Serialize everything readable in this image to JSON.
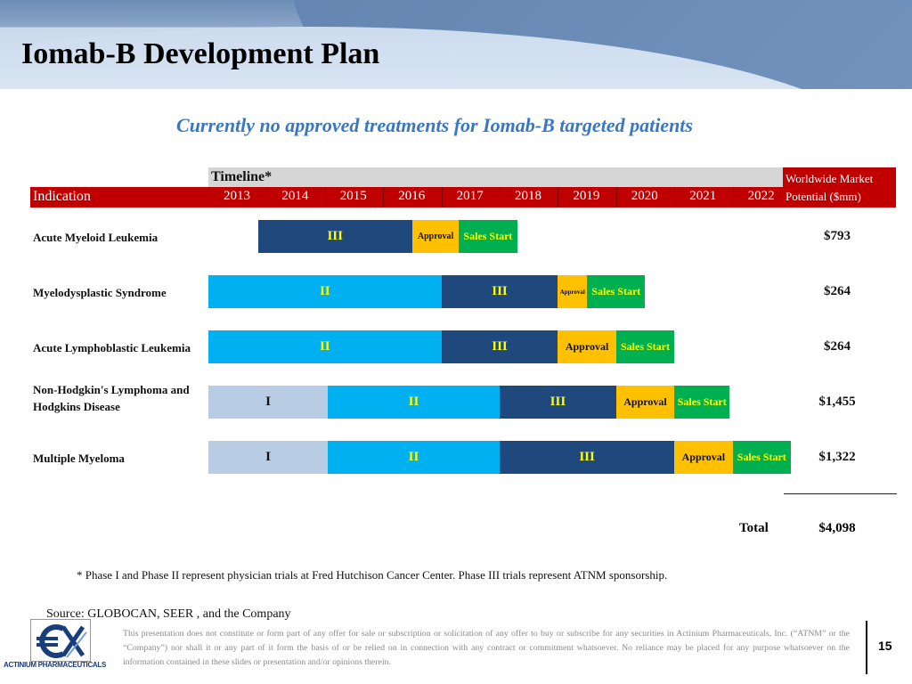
{
  "slide": {
    "title": "Iomab-B Development Plan",
    "subtitle": "Currently no approved treatments for Iomab-B targeted patients",
    "timeline_label": "Timeline*",
    "indication_header": "Indication",
    "market_header_line1": "Worldwide Market",
    "market_header_line2": "Potential ($mm)",
    "total_label": "Total",
    "total_value": "$4,098",
    "footnote": "* Phase I and Phase II represent physician trials at Fred Hutchison Cancer Center. Phase III trials represent ATNM sponsorship.",
    "source": "Source: GLOBOCAN, SEER , and the Company",
    "logo_text": "ACTINIUM PHARMACEUTICALS",
    "disclaimer": "This presentation does not constitute or form part of any offer for sale or subscription or solicitation of any offer to buy or subscribe for any securities in Actinium Pharmaceuticals, Inc. (“ATNM” or the “Company”) nor shall it or any part of it form the basis of or be relied on in connection with any contract or commitment whatsoever. No reliance may be placed for any purpose whatsoever on the information contained in these slides or presentation and/or opinions therein.",
    "page_number": "15"
  },
  "colors": {
    "header_red": "#c00000",
    "phase_I": "#b8cce4",
    "phase_II": "#00b0f0",
    "phase_III": "#1f497d",
    "approval": "#ffc000",
    "sales_start": "#00b050",
    "phase_text": "#ffff00",
    "sales_text": "#ffff00"
  },
  "chart_data": {
    "type": "gantt",
    "title": "Iomab-B Development Plan",
    "years": [
      "2013",
      "2014",
      "2015",
      "2016",
      "2017",
      "2018",
      "2019",
      "2020",
      "2021",
      "2022"
    ],
    "rows": [
      {
        "indication": "Acute Myeloid Leukemia",
        "market": "$793",
        "segments": [
          {
            "label": "III",
            "kind": "phase_III",
            "start": 2013.85,
            "end": 2016.5
          },
          {
            "label": "Approval",
            "kind": "approval",
            "start": 2016.5,
            "end": 2017.3
          },
          {
            "label": "Sales Start",
            "kind": "sales_start",
            "start": 2017.3,
            "end": 2018.3
          }
        ]
      },
      {
        "indication": "Myelodysplastic Syndrome",
        "market": "$264",
        "segments": [
          {
            "label": "II",
            "kind": "phase_II",
            "start": 2013,
            "end": 2017
          },
          {
            "label": "III",
            "kind": "phase_III",
            "start": 2017,
            "end": 2019
          },
          {
            "label": "Approval",
            "kind": "approval",
            "start": 2019,
            "end": 2019.5
          },
          {
            "label": "Sales Start",
            "kind": "sales_start",
            "start": 2019.5,
            "end": 2020.5
          }
        ]
      },
      {
        "indication": "Acute Lymphoblastic Leukemia",
        "market": "$264",
        "segments": [
          {
            "label": "II",
            "kind": "phase_II",
            "start": 2013,
            "end": 2017
          },
          {
            "label": "III",
            "kind": "phase_III",
            "start": 2017,
            "end": 2019
          },
          {
            "label": "Approval",
            "kind": "approval",
            "start": 2019,
            "end": 2020
          },
          {
            "label": "Sales Start",
            "kind": "sales_start",
            "start": 2020,
            "end": 2021
          }
        ]
      },
      {
        "indication": "Non-Hodgkin's Lymphoma and Hodgkins Disease",
        "market": "$1,455",
        "segments": [
          {
            "label": "I",
            "kind": "phase_I",
            "start": 2013,
            "end": 2015.05
          },
          {
            "label": "II",
            "kind": "phase_II",
            "start": 2015.05,
            "end": 2018
          },
          {
            "label": "III",
            "kind": "phase_III",
            "start": 2018,
            "end": 2020
          },
          {
            "label": "Approval",
            "kind": "approval",
            "start": 2020,
            "end": 2021
          },
          {
            "label": "Sales Start",
            "kind": "sales_start",
            "start": 2021,
            "end": 2021.95
          }
        ]
      },
      {
        "indication": "Multiple Myeloma",
        "market": "$1,322",
        "segments": [
          {
            "label": "I",
            "kind": "phase_I",
            "start": 2013,
            "end": 2015.05
          },
          {
            "label": "II",
            "kind": "phase_II",
            "start": 2015.05,
            "end": 2018
          },
          {
            "label": "III",
            "kind": "phase_III",
            "start": 2018,
            "end": 2021
          },
          {
            "label": "Approval",
            "kind": "approval",
            "start": 2021,
            "end": 2022
          },
          {
            "label": "Sales Start",
            "kind": "sales_start",
            "start": 2022,
            "end": 2023
          }
        ]
      }
    ],
    "total_market": "$4,098",
    "units": "$mm"
  }
}
